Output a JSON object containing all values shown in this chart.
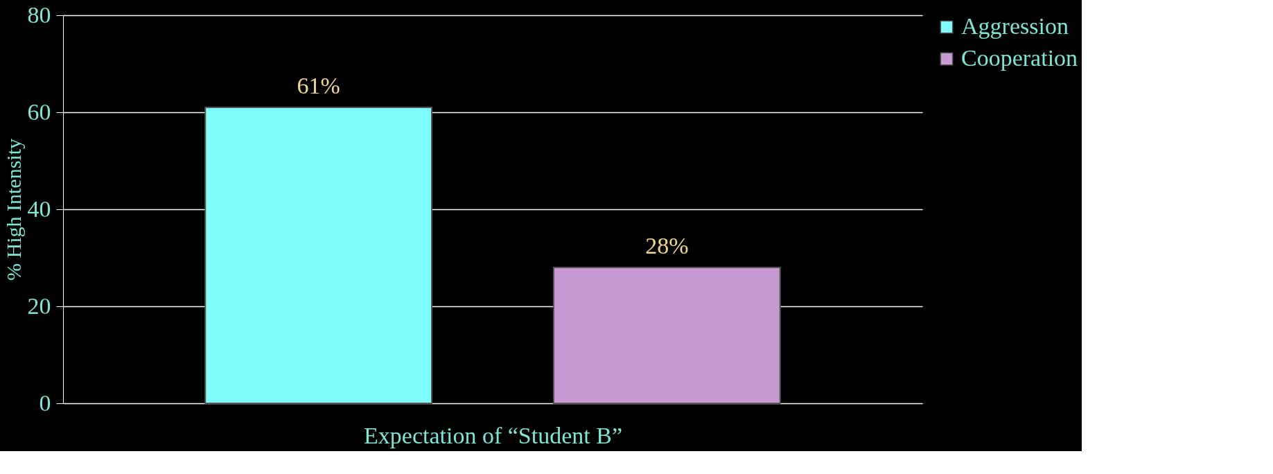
{
  "chart_data": {
    "type": "bar",
    "xlabel": "Expectation of “Student B”",
    "ylabel": "% High Intensity",
    "categories": [
      null
    ],
    "series": [
      {
        "name": "Aggression",
        "color": "#7ffcfc",
        "values": [
          61
        ],
        "value_labels": [
          "61%"
        ]
      },
      {
        "name": "Cooperation",
        "color": "#c99ad2",
        "values": [
          28
        ],
        "value_labels": [
          "28%"
        ]
      }
    ],
    "ylim": [
      0,
      80
    ],
    "yticks": [
      0,
      20,
      40,
      60,
      80
    ],
    "grid": "y",
    "legend": "right"
  }
}
